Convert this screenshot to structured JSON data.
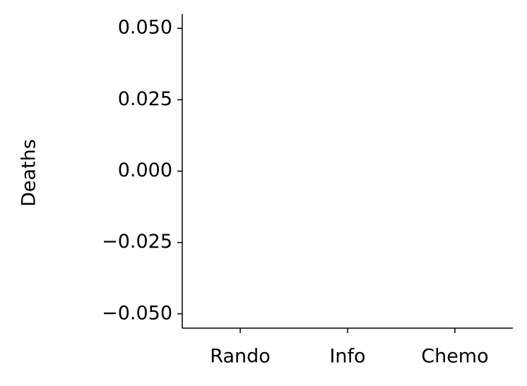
{
  "chart_data": {
    "type": "bar",
    "y_label": "Deaths",
    "categories": [
      "Rando",
      "Info",
      "Chemo"
    ],
    "values": [
      0,
      0,
      0
    ],
    "color": "#1f77b4",
    "ylim": [
      -0.055,
      0.055
    ],
    "yticks": [
      {
        "value": -0.05,
        "label": "−0.050"
      },
      {
        "value": -0.025,
        "label": "−0.025"
      },
      {
        "value": 0,
        "label": "0.000"
      },
      {
        "value": 0.025,
        "label": "0.025"
      },
      {
        "value": 0.05,
        "label": "0.050"
      }
    ],
    "grid": false
  }
}
